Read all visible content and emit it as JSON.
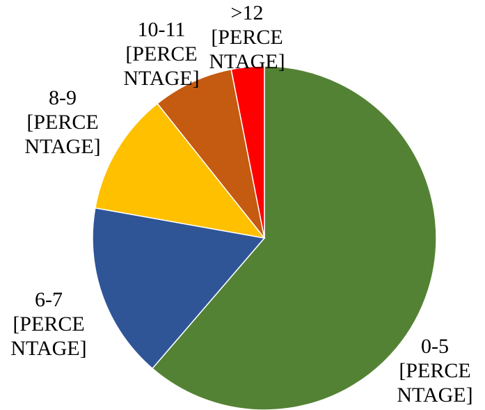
{
  "chart_data": {
    "type": "pie",
    "categories": [
      "0-5",
      "6-7",
      "8-9",
      "10-11",
      ">12"
    ],
    "values": [
      61.3,
      16.5,
      11.5,
      7.6,
      3.1
    ],
    "value_labels": [
      "[PERCENTAGE]",
      "[PERCENTAGE]",
      "[PERCENTAGE]",
      "[PERCENTAGE]",
      "[PERCENTAGE]"
    ],
    "colors": [
      "#548235",
      "#2f5597",
      "#ffc000",
      "#c55a11",
      "#ff0000"
    ]
  }
}
